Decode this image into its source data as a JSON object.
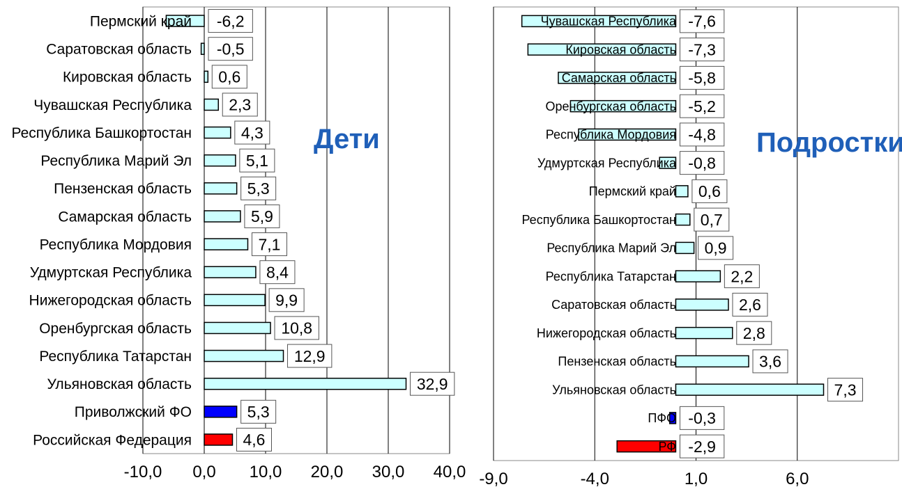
{
  "chart_data": [
    {
      "type": "bar",
      "orientation": "horizontal",
      "title": "Дети",
      "xlim": [
        -10,
        40
      ],
      "xticks": [
        "-10,0",
        "0,0",
        "10,0",
        "20,0",
        "30,0",
        "40,0"
      ],
      "xtick_values": [
        -10,
        0,
        10,
        20,
        30,
        40
      ],
      "gridlines": true,
      "series": [
        {
          "categories": [
            "Пермский край",
            "Саратовская область",
            "Кировская область",
            "Чувашская Республика",
            "Республика Башкортостан",
            "Республика Марий Эл",
            "Пензенская область",
            "Самарская область",
            "Республика Мордовия",
            "Удмуртская Республика",
            "Нижегородская область",
            "Оренбургская область",
            "Республика Татарстан",
            "Ульяновская область",
            "Приволжский ФО",
            "Российская Федерация"
          ],
          "values": [
            -6.2,
            -0.5,
            0.6,
            2.3,
            4.3,
            5.1,
            5.3,
            5.9,
            7.1,
            8.4,
            9.9,
            10.8,
            12.9,
            32.9,
            5.3,
            4.6
          ],
          "labels": [
            "-6,2",
            "-0,5",
            "0,6",
            "2,3",
            "4,3",
            "5,1",
            "5,3",
            "5,9",
            "7,1",
            "8,4",
            "9,9",
            "10,8",
            "12,9",
            "32,9",
            "5,3",
            "4,6"
          ],
          "colors": [
            "#ccffff",
            "#ccffff",
            "#ccffff",
            "#ccffff",
            "#ccffff",
            "#ccffff",
            "#ccffff",
            "#ccffff",
            "#ccffff",
            "#ccffff",
            "#ccffff",
            "#ccffff",
            "#ccffff",
            "#ccffff",
            "#0000ff",
            "#ff0000"
          ]
        }
      ]
    },
    {
      "type": "bar",
      "orientation": "horizontal",
      "title": "Подростки",
      "xlim": [
        -9,
        11
      ],
      "xticks": [
        "-9,0",
        "-4,0",
        "1,0",
        "6,0"
      ],
      "xtick_values": [
        -9,
        -4,
        1,
        6
      ],
      "gridlines": true,
      "series": [
        {
          "categories": [
            "Чувашская Республика",
            "Кировская область",
            "Самарская область",
            "Оренбургская область",
            "Республика Мордовия",
            "Удмуртская Республика",
            "Пермский край",
            "Республика Башкортостан",
            "Республика Марий Эл",
            "Республика Татарстан",
            "Саратовская область",
            "Нижегородская область",
            "Пензенская область",
            "Ульяновская область",
            "ПФО",
            "РФ"
          ],
          "values": [
            -7.6,
            -7.3,
            -5.8,
            -5.2,
            -4.8,
            -0.8,
            0.6,
            0.7,
            0.9,
            2.2,
            2.6,
            2.8,
            3.6,
            7.3,
            -0.3,
            -2.9
          ],
          "labels": [
            "-7,6",
            "-7,3",
            "-5,8",
            "-5,2",
            "-4,8",
            "-0,8",
            "0,6",
            "0,7",
            "0,9",
            "2,2",
            "2,6",
            "2,8",
            "3,6",
            "7,3",
            "-0,3",
            "-2,9"
          ],
          "colors": [
            "#ccffff",
            "#ccffff",
            "#ccffff",
            "#ccffff",
            "#ccffff",
            "#ccffff",
            "#ccffff",
            "#ccffff",
            "#ccffff",
            "#ccffff",
            "#ccffff",
            "#ccffff",
            "#ccffff",
            "#ccffff",
            "#0000ff",
            "#ff0000"
          ]
        }
      ]
    }
  ]
}
